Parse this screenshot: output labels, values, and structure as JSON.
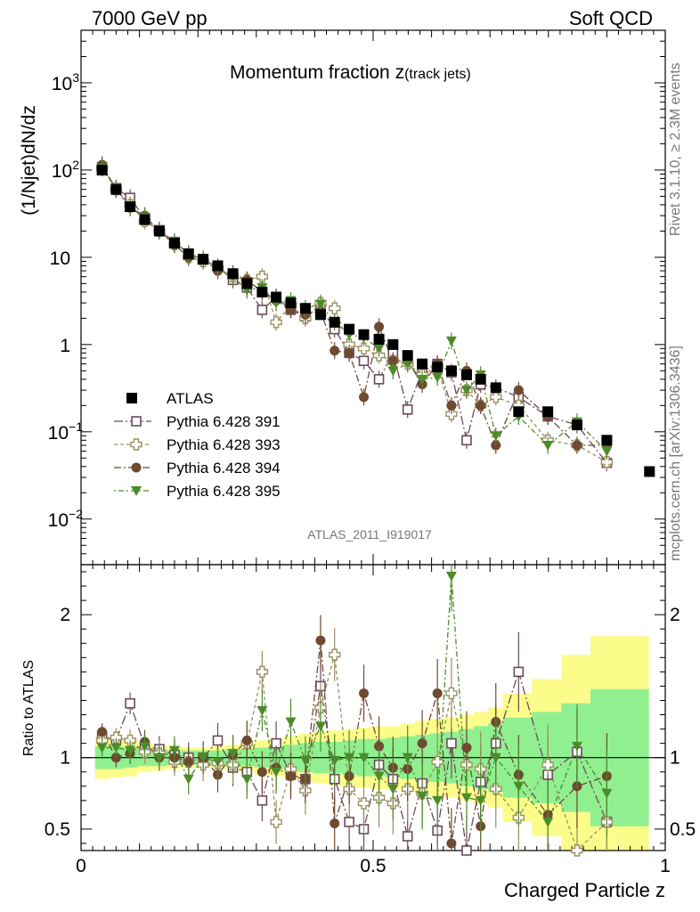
{
  "header": {
    "left": "7000 GeV pp",
    "right": "Soft QCD"
  },
  "side_labels": {
    "rivet": "Rivet 3.1.10, ≥ 2.3M events",
    "mcplots": "mcplots.cern.ch [arXiv:1306.3436]"
  },
  "plot_title": {
    "main": "Momentum fraction z",
    "sub": "(track jets)"
  },
  "analysis_id": "ATLAS_2011_I919017",
  "chart_data": [
    {
      "type": "scatter",
      "panel": "main",
      "ylabel": "(1/Njet)dN/dz",
      "yscale": "log",
      "ylim": [
        0.003,
        4000
      ],
      "xlim": [
        0,
        1
      ],
      "x": [
        0.036,
        0.06,
        0.084,
        0.109,
        0.134,
        0.16,
        0.184,
        0.209,
        0.234,
        0.26,
        0.284,
        0.31,
        0.334,
        0.359,
        0.384,
        0.41,
        0.434,
        0.459,
        0.484,
        0.51,
        0.534,
        0.559,
        0.584,
        0.61,
        0.634,
        0.66,
        0.684,
        0.71,
        0.749,
        0.799,
        0.849,
        0.9,
        0.973
      ],
      "reference": {
        "name": "ATLAS",
        "color": "#000000",
        "marker": "square",
        "y": [
          100,
          60,
          38,
          27,
          20,
          14.5,
          11,
          9.5,
          8,
          6.5,
          5,
          4,
          3.5,
          3,
          2.6,
          2.2,
          1.8,
          1.5,
          1.3,
          1.15,
          1.0,
          0.75,
          0.6,
          0.55,
          0.5,
          0.45,
          0.4,
          0.32,
          0.17,
          0.17,
          0.12,
          0.08,
          0.035
        ]
      },
      "series": [
        {
          "name": "Pythia 6.428 391",
          "color": "#6b4a5e",
          "marker": "open-square",
          "dash": "10 3 2 3",
          "y": [
            108,
            62,
            48,
            28,
            20.5,
            15,
            11,
            9.4,
            7.8,
            5.5,
            4.5,
            2.5,
            3.5,
            2.5,
            2.1,
            2.7,
            1.5,
            0.8,
            0.65,
            0.4,
            0.8,
            0.18,
            0.5,
            0.6,
            0.48,
            0.08,
            0.35,
            0.32,
            0.25,
            0.15,
            0.12,
            0.044,
            null
          ]
        },
        {
          "name": "Pythia 6.428 393",
          "color": "#9a8f60",
          "marker": "open-cross",
          "dash": "4 3",
          "y": [
            105,
            60,
            40,
            26,
            20,
            14,
            10,
            9,
            7.5,
            6,
            5.5,
            6,
            1.8,
            2.8,
            2,
            3,
            2.6,
            1.0,
            0.9,
            0.75,
            0.65,
            0.6,
            0.45,
            0.55,
            0.16,
            0.3,
            0.2,
            0.25,
            0.2,
            0.08,
            0.07,
            0.045,
            null
          ]
        },
        {
          "name": "Pythia 6.428 394",
          "color": "#6e4a30",
          "marker": "circle",
          "dash": "8 3 2 3",
          "y": [
            115,
            60,
            37,
            30,
            20,
            14,
            10,
            9.5,
            7,
            6.5,
            5.5,
            4,
            3.2,
            2.5,
            2.2,
            2.4,
            0.85,
            0.8,
            0.25,
            1.6,
            0.65,
            0.65,
            0.35,
            0.6,
            0.2,
            0.5,
            0.2,
            0.07,
            0.3,
            0.15,
            0.07,
            0.07,
            null
          ]
        },
        {
          "name": "Pythia 6.428 395",
          "color": "#4c8c28",
          "marker": "triangle-down",
          "dash": "2 3 6 3",
          "y": [
            106,
            62,
            37,
            29,
            20,
            15,
            11,
            9.5,
            7.5,
            6,
            4.2,
            4.5,
            3,
            3.2,
            2.6,
            2.9,
            1.8,
            1.3,
            1.2,
            0.9,
            0.5,
            0.6,
            0.4,
            0.42,
            1.1,
            0.3,
            0.45,
            0.09,
            0.15,
            0.07,
            0.13,
            0.06,
            null
          ]
        }
      ],
      "legend": {
        "position": "lower-left"
      }
    },
    {
      "type": "scatter",
      "panel": "ratio",
      "ylabel": "Ratio to ATLAS",
      "xlabel": "Charged Particle z",
      "ylim": [
        0.35,
        2.35
      ],
      "xlim": [
        0,
        1
      ],
      "x_ticks": [
        0,
        0.5,
        1
      ],
      "x_tick_labels": [
        "0",
        "0.5",
        "1"
      ],
      "y_ticks": [
        0.5,
        1,
        2
      ],
      "y_tick_labels": [
        "0.5",
        "1",
        "2"
      ],
      "x": [
        0.036,
        0.06,
        0.084,
        0.109,
        0.134,
        0.16,
        0.184,
        0.209,
        0.234,
        0.26,
        0.284,
        0.31,
        0.334,
        0.359,
        0.384,
        0.41,
        0.434,
        0.459,
        0.484,
        0.51,
        0.534,
        0.559,
        0.584,
        0.61,
        0.634,
        0.66,
        0.684,
        0.71,
        0.749,
        0.799,
        0.849,
        0.9
      ],
      "band_edges": [
        0.024,
        0.048,
        0.072,
        0.097,
        0.122,
        0.147,
        0.172,
        0.197,
        0.222,
        0.247,
        0.272,
        0.297,
        0.322,
        0.347,
        0.372,
        0.397,
        0.422,
        0.447,
        0.472,
        0.497,
        0.522,
        0.547,
        0.572,
        0.597,
        0.622,
        0.647,
        0.672,
        0.697,
        0.722,
        0.772,
        0.822,
        0.872,
        0.972
      ],
      "band_stat": [
        0.08,
        0.08,
        0.07,
        0.06,
        0.06,
        0.05,
        0.05,
        0.05,
        0.05,
        0.06,
        0.06,
        0.07,
        0.08,
        0.09,
        0.1,
        0.11,
        0.11,
        0.12,
        0.13,
        0.13,
        0.14,
        0.15,
        0.16,
        0.17,
        0.18,
        0.2,
        0.22,
        0.24,
        0.28,
        0.32,
        0.38,
        0.48
      ],
      "band_total": [
        0.15,
        0.14,
        0.13,
        0.1,
        0.09,
        0.08,
        0.07,
        0.07,
        0.08,
        0.09,
        0.1,
        0.12,
        0.13,
        0.15,
        0.17,
        0.18,
        0.19,
        0.2,
        0.21,
        0.22,
        0.22,
        0.24,
        0.26,
        0.27,
        0.28,
        0.3,
        0.32,
        0.35,
        0.45,
        0.55,
        0.72,
        0.85
      ],
      "series": [
        {
          "name": "Pythia 6.428 391",
          "color": "#6b4a5e",
          "marker": "open-square",
          "dash": "10 3 2 3",
          "y": [
            1.15,
            1.12,
            1.38,
            1.08,
            1.06,
            1.02,
            1.0,
            1.0,
            1.12,
            0.93,
            0.9,
            0.7,
            1.1,
            0.88,
            0.85,
            1.5,
            0.85,
            0.55,
            0.5,
            0.95,
            0.85,
            0.45,
            0.82,
            0.49,
            1.1,
            0.35,
            0.83,
            1.1,
            1.6,
            0.88,
            1.04,
            0.55
          ]
        },
        {
          "name": "Pythia 6.428 393",
          "color": "#9a8f60",
          "marker": "open-cross",
          "dash": "4 3",
          "y": [
            1.12,
            1.14,
            1.12,
            1.04,
            1.03,
            0.97,
            0.97,
            0.95,
            0.96,
            0.95,
            1.1,
            1.6,
            0.55,
            0.92,
            0.77,
            1.35,
            1.72,
            0.78,
            0.68,
            0.72,
            0.68,
            0.78,
            0.75,
            0.97,
            1.45,
            0.95,
            0.92,
            0.78,
            0.58,
            0.95,
            0.35,
            0.55
          ]
        },
        {
          "name": "Pythia 6.428 394",
          "color": "#6e4a30",
          "marker": "circle",
          "dash": "8 3 2 3",
          "y": [
            1.18,
            1.0,
            1.03,
            1.11,
            1.0,
            1.0,
            0.97,
            1.0,
            0.88,
            1.02,
            1.12,
            0.9,
            0.93,
            0.87,
            0.85,
            1.82,
            0.54,
            0.87,
            1.45,
            1.08,
            0.93,
            0.92,
            1.1,
            1.45,
            0.4,
            1.07,
            0.52,
            1.25,
            0.88,
            0.6,
            0.8,
            0.87
          ]
        },
        {
          "name": "Pythia 6.428 395",
          "color": "#4c8c28",
          "marker": "triangle-down",
          "dash": "2 3 6 3",
          "y": [
            1.07,
            1.07,
            1.05,
            1.08,
            1.0,
            1.05,
            0.85,
            1.0,
            0.97,
            1.03,
            0.85,
            1.33,
            0.9,
            1.25,
            0.98,
            1.22,
            0.98,
            1.0,
            1.0,
            0.87,
            0.78,
            1.0,
            0.73,
            0.7,
            2.27,
            0.72,
            0.7,
            1.0,
            0.8,
            0.55,
            1.08,
            0.75
          ]
        }
      ],
      "band_colors": {
        "stat": "#90f090",
        "total": "#fcfc8a"
      }
    }
  ]
}
